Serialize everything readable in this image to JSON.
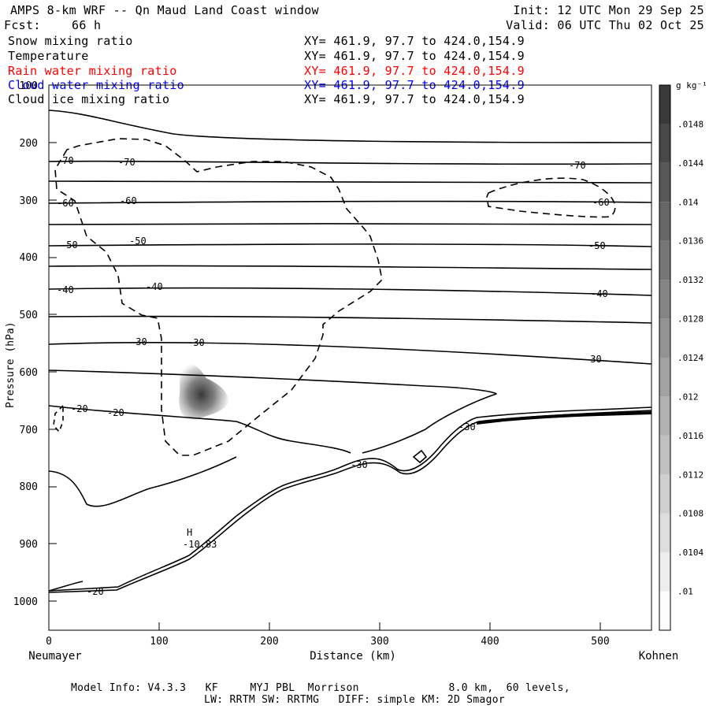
{
  "header": {
    "title": "AMPS 8-km WRF -- Qn Maud Land Coast window",
    "fcst_label": "Fcst:",
    "fcst_value": "66 h",
    "init": "Init: 12 UTC Mon 29 Sep 25",
    "valid": "Valid: 06 UTC Thu 02 Oct 25"
  },
  "fields": [
    {
      "name": "Snow mixing ratio",
      "xy": "XY= 461.9, 97.7 to 424.0,154.9",
      "color": "#000000"
    },
    {
      "name": "Temperature",
      "xy": "XY= 461.9, 97.7 to 424.0,154.9",
      "color": "#000000"
    },
    {
      "name": "Rain water mixing ratio",
      "xy": "XY= 461.9, 97.7 to 424.0,154.9",
      "color": "#ff0000"
    },
    {
      "name": "Cloud water mixing ratio",
      "xy": "XY= 461.9, 97.7 to 424.0,154.9",
      "color": "#0000ff"
    },
    {
      "name": "Cloud ice mixing ratio",
      "xy": "XY= 461.9, 97.7 to 424.0,154.9",
      "color": "#000000"
    }
  ],
  "footer": {
    "line1": "Model Info: V4.3.3   KF     MYJ PBL  Morrison              8.0 km,  60 levels,",
    "line2": "LW: RRTM SW: RRTMG   DIFF: simple KM: 2D Smagor"
  },
  "chart_data": {
    "type": "contour",
    "ylabel": "Pressure (hPa)",
    "xlabel": "Distance (km)",
    "left_endpoint": "Neumayer",
    "right_endpoint": "Kohnen",
    "xlim": [
      0,
      546
    ],
    "ylim": [
      1050,
      100
    ],
    "x_ticks": [
      0,
      100,
      200,
      300,
      400,
      500
    ],
    "y_ticks": [
      100,
      200,
      300,
      400,
      500,
      600,
      700,
      800,
      900,
      1000
    ],
    "colorbar": {
      "unit": "g kg⁻¹",
      "ticks": [
        ".01",
        ".0104",
        ".0108",
        ".0112",
        ".0116",
        ".012",
        ".0124",
        ".0128",
        ".0132",
        ".0136",
        ".014",
        ".0144",
        ".0148"
      ]
    },
    "isotherms": [
      {
        "value": -70,
        "label": "-70",
        "pressure_left": 230,
        "pressure_right": 235
      },
      {
        "value": -60,
        "label": "-60",
        "pressure_left": 305,
        "pressure_right": 313
      },
      {
        "value": -50,
        "label": "-50",
        "pressure_left": 380,
        "pressure_right": 386
      },
      {
        "value": -40,
        "label": "-40",
        "pressure_left": 460,
        "pressure_right": 468
      },
      {
        "value": -30,
        "label": "-30",
        "pressure_left": 550,
        "pressure_right": 582
      },
      {
        "value": -20,
        "label": "-20",
        "pressure_left": 665,
        "pressure_right": null
      }
    ],
    "annotations": [
      {
        "label": "H",
        "x": 128,
        "pressure": 885
      },
      {
        "label": "-10.83",
        "x": 136,
        "pressure": 900
      }
    ],
    "shaded_max": {
      "x": 140,
      "pressure": 640
    }
  }
}
